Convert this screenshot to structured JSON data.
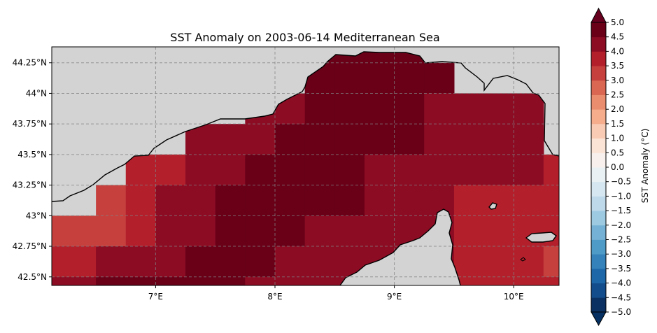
{
  "title": "SST Anomaly on 2003-06-14 Mediterranean Sea",
  "x_ticks": [
    {
      "lon": 7,
      "label": "7°E"
    },
    {
      "lon": 8,
      "label": "8°E"
    },
    {
      "lon": 9,
      "label": "9°E"
    },
    {
      "lon": 10,
      "label": "10°E"
    }
  ],
  "y_ticks": [
    {
      "lat": 44.25,
      "label": "44.25°N"
    },
    {
      "lat": 44.0,
      "label": "44°N"
    },
    {
      "lat": 43.75,
      "label": "43.75°N"
    },
    {
      "lat": 43.5,
      "label": "43.5°N"
    },
    {
      "lat": 43.25,
      "label": "43.25°N"
    },
    {
      "lat": 43.0,
      "label": "43°N"
    },
    {
      "lat": 42.75,
      "label": "42.75°N"
    },
    {
      "lat": 42.5,
      "label": "42.5°N"
    }
  ],
  "colorbar": {
    "label": "SST Anomaly (°C)",
    "ticks": [
      "−5.0",
      "−4.5",
      "−4.0",
      "−3.5",
      "−3.0",
      "−2.5",
      "−2.0",
      "−1.5",
      "−1.0",
      "−0.5",
      "0.0",
      "0.5",
      "1.0",
      "1.5",
      "2.0",
      "2.5",
      "3.0",
      "3.5",
      "4.0",
      "4.5",
      "5.0"
    ],
    "extend": "both",
    "colors": [
      "#0a3162",
      "#134d8b",
      "#1d67a9",
      "#3581b9",
      "#4f9bc7",
      "#74b1d4",
      "#9dcae1",
      "#bdd9ea",
      "#d7e7f1",
      "#eaf1f5",
      "#f8f0ec",
      "#fbe3d5",
      "#f9cbb4",
      "#f5ad8c",
      "#ea8c6e",
      "#d96752",
      "#c6413e",
      "#b3202c",
      "#8c0c24",
      "#690018"
    ],
    "extend_low_color": "#053061",
    "extend_high_color": "#67001f"
  },
  "colors": {
    "land": "#d3d3d3",
    "ocean_nodata": "#ffffff",
    "coastline": "#000000",
    "gridline": "#808080"
  },
  "chart_data": {
    "type": "heatmap",
    "title": "SST Anomaly on 2003-06-14 Mediterranean Sea",
    "xlabel": "",
    "ylabel": "",
    "lon_range": [
      6.13,
      10.38
    ],
    "lat_range": [
      42.43,
      44.38
    ],
    "grid_resolution_deg": 0.25,
    "grid_lines": true,
    "colorbar_label": "SST Anomaly (°C)",
    "colorbar_range": [
      -5.0,
      5.0
    ],
    "cells": [
      {
        "lon": 8.375,
        "lat": 44.375,
        "value": 4.8
      },
      {
        "lon": 8.625,
        "lat": 44.375,
        "value": 4.8
      },
      {
        "lon": 8.875,
        "lat": 44.375,
        "value": 4.8
      },
      {
        "lon": 9.125,
        "lat": 44.375,
        "value": 4.8
      },
      {
        "lon": 8.375,
        "lat": 44.125,
        "value": 4.8
      },
      {
        "lon": 8.625,
        "lat": 44.125,
        "value": 4.8
      },
      {
        "lon": 8.875,
        "lat": 44.125,
        "value": 4.8
      },
      {
        "lon": 9.125,
        "lat": 44.125,
        "value": 4.8
      },
      {
        "lon": 9.375,
        "lat": 44.125,
        "value": 4.8
      },
      {
        "lon": 7.875,
        "lat": 43.875,
        "value": 4.3
      },
      {
        "lon": 8.125,
        "lat": 43.875,
        "value": 4.3
      },
      {
        "lon": 8.375,
        "lat": 43.875,
        "value": 4.8
      },
      {
        "lon": 8.625,
        "lat": 43.875,
        "value": 4.8
      },
      {
        "lon": 8.875,
        "lat": 43.875,
        "value": 4.8
      },
      {
        "lon": 9.125,
        "lat": 43.875,
        "value": 4.8
      },
      {
        "lon": 9.375,
        "lat": 43.875,
        "value": 4.3
      },
      {
        "lon": 9.625,
        "lat": 43.875,
        "value": 4.3
      },
      {
        "lon": 9.875,
        "lat": 43.875,
        "value": 4.3
      },
      {
        "lon": 10.125,
        "lat": 43.875,
        "value": 4.3
      },
      {
        "lon": 7.375,
        "lat": 43.625,
        "value": 4.3
      },
      {
        "lon": 7.625,
        "lat": 43.625,
        "value": 4.3
      },
      {
        "lon": 7.875,
        "lat": 43.625,
        "value": 4.3
      },
      {
        "lon": 8.125,
        "lat": 43.625,
        "value": 4.8
      },
      {
        "lon": 8.375,
        "lat": 43.625,
        "value": 4.8
      },
      {
        "lon": 8.625,
        "lat": 43.625,
        "value": 4.8
      },
      {
        "lon": 8.875,
        "lat": 43.625,
        "value": 4.8
      },
      {
        "lon": 9.125,
        "lat": 43.625,
        "value": 4.8
      },
      {
        "lon": 9.375,
        "lat": 43.625,
        "value": 4.3
      },
      {
        "lon": 9.625,
        "lat": 43.625,
        "value": 4.3
      },
      {
        "lon": 9.875,
        "lat": 43.625,
        "value": 4.3
      },
      {
        "lon": 10.125,
        "lat": 43.625,
        "value": 4.3
      },
      {
        "lon": 6.875,
        "lat": 43.375,
        "value": 3.8
      },
      {
        "lon": 7.125,
        "lat": 43.375,
        "value": 3.8
      },
      {
        "lon": 7.375,
        "lat": 43.375,
        "value": 4.3
      },
      {
        "lon": 7.625,
        "lat": 43.375,
        "value": 4.3
      },
      {
        "lon": 7.875,
        "lat": 43.375,
        "value": 4.8
      },
      {
        "lon": 8.125,
        "lat": 43.375,
        "value": 4.8
      },
      {
        "lon": 8.375,
        "lat": 43.375,
        "value": 4.8
      },
      {
        "lon": 8.625,
        "lat": 43.375,
        "value": 4.8
      },
      {
        "lon": 8.875,
        "lat": 43.375,
        "value": 4.3
      },
      {
        "lon": 9.125,
        "lat": 43.375,
        "value": 4.3
      },
      {
        "lon": 9.375,
        "lat": 43.375,
        "value": 4.3
      },
      {
        "lon": 9.625,
        "lat": 43.375,
        "value": 4.3
      },
      {
        "lon": 9.875,
        "lat": 43.375,
        "value": 4.3
      },
      {
        "lon": 10.125,
        "lat": 43.375,
        "value": 4.3
      },
      {
        "lon": 10.375,
        "lat": 43.375,
        "value": 3.8
      },
      {
        "lon": 6.625,
        "lat": 43.125,
        "value": 3.3
      },
      {
        "lon": 6.875,
        "lat": 43.125,
        "value": 3.8
      },
      {
        "lon": 7.125,
        "lat": 43.125,
        "value": 4.3
      },
      {
        "lon": 7.375,
        "lat": 43.125,
        "value": 4.3
      },
      {
        "lon": 7.625,
        "lat": 43.125,
        "value": 4.8
      },
      {
        "lon": 7.875,
        "lat": 43.125,
        "value": 4.8
      },
      {
        "lon": 8.125,
        "lat": 43.125,
        "value": 4.8
      },
      {
        "lon": 8.375,
        "lat": 43.125,
        "value": 4.8
      },
      {
        "lon": 8.625,
        "lat": 43.125,
        "value": 4.8
      },
      {
        "lon": 8.875,
        "lat": 43.125,
        "value": 4.3
      },
      {
        "lon": 9.125,
        "lat": 43.125,
        "value": 4.3
      },
      {
        "lon": 9.375,
        "lat": 43.125,
        "value": 4.3
      },
      {
        "lon": 9.625,
        "lat": 43.125,
        "value": 3.8
      },
      {
        "lon": 9.875,
        "lat": 43.125,
        "value": 3.8
      },
      {
        "lon": 10.125,
        "lat": 43.125,
        "value": 3.8
      },
      {
        "lon": 10.375,
        "lat": 43.125,
        "value": 3.8
      },
      {
        "lon": 6.125,
        "lat": 42.875,
        "value": 3.3
      },
      {
        "lon": 6.375,
        "lat": 42.875,
        "value": 3.3
      },
      {
        "lon": 6.625,
        "lat": 42.875,
        "value": 3.3
      },
      {
        "lon": 6.875,
        "lat": 42.875,
        "value": 3.8
      },
      {
        "lon": 7.125,
        "lat": 42.875,
        "value": 4.3
      },
      {
        "lon": 7.375,
        "lat": 42.875,
        "value": 4.3
      },
      {
        "lon": 7.625,
        "lat": 42.875,
        "value": 4.8
      },
      {
        "lon": 7.875,
        "lat": 42.875,
        "value": 4.8
      },
      {
        "lon": 8.125,
        "lat": 42.875,
        "value": 4.8
      },
      {
        "lon": 8.375,
        "lat": 42.875,
        "value": 4.3
      },
      {
        "lon": 8.625,
        "lat": 42.875,
        "value": 4.3
      },
      {
        "lon": 8.875,
        "lat": 42.875,
        "value": 4.3
      },
      {
        "lon": 9.125,
        "lat": 42.875,
        "value": 4.3
      },
      {
        "lon": 9.375,
        "lat": 42.875,
        "value": 4.3
      },
      {
        "lon": 9.625,
        "lat": 42.875,
        "value": 3.8
      },
      {
        "lon": 9.875,
        "lat": 42.875,
        "value": 3.8
      },
      {
        "lon": 10.125,
        "lat": 42.875,
        "value": 3.8
      },
      {
        "lon": 10.375,
        "lat": 42.875,
        "value": 3.8
      },
      {
        "lon": 6.125,
        "lat": 42.625,
        "value": 3.8
      },
      {
        "lon": 6.375,
        "lat": 42.625,
        "value": 3.8
      },
      {
        "lon": 6.625,
        "lat": 42.625,
        "value": 4.3
      },
      {
        "lon": 6.875,
        "lat": 42.625,
        "value": 4.3
      },
      {
        "lon": 7.125,
        "lat": 42.625,
        "value": 4.3
      },
      {
        "lon": 7.375,
        "lat": 42.625,
        "value": 4.8
      },
      {
        "lon": 7.625,
        "lat": 42.625,
        "value": 4.8
      },
      {
        "lon": 7.875,
        "lat": 42.625,
        "value": 4.8
      },
      {
        "lon": 8.125,
        "lat": 42.625,
        "value": 4.3
      },
      {
        "lon": 8.375,
        "lat": 42.625,
        "value": 4.3
      },
      {
        "lon": 8.625,
        "lat": 42.625,
        "value": 4.3
      },
      {
        "lon": 8.875,
        "lat": 42.625,
        "value": 4.3
      },
      {
        "lon": 9.125,
        "lat": 42.625,
        "value": 4.3
      },
      {
        "lon": 9.375,
        "lat": 42.625,
        "value": 4.3
      },
      {
        "lon": 9.625,
        "lat": 42.625,
        "value": 3.8
      },
      {
        "lon": 9.875,
        "lat": 42.625,
        "value": 3.8
      },
      {
        "lon": 10.125,
        "lat": 42.625,
        "value": 3.8
      },
      {
        "lon": 10.375,
        "lat": 42.625,
        "value": 3.3
      },
      {
        "lon": 6.125,
        "lat": 42.375,
        "value": 4.3
      },
      {
        "lon": 6.375,
        "lat": 42.375,
        "value": 4.3
      },
      {
        "lon": 6.625,
        "lat": 42.375,
        "value": 4.8
      },
      {
        "lon": 6.875,
        "lat": 42.375,
        "value": 4.8
      },
      {
        "lon": 7.125,
        "lat": 42.375,
        "value": 4.8
      },
      {
        "lon": 7.375,
        "lat": 42.375,
        "value": 4.8
      },
      {
        "lon": 7.625,
        "lat": 42.375,
        "value": 4.8
      },
      {
        "lon": 7.875,
        "lat": 42.375,
        "value": 4.3
      },
      {
        "lon": 8.125,
        "lat": 42.375,
        "value": 4.3
      },
      {
        "lon": 8.375,
        "lat": 42.375,
        "value": 4.3
      },
      {
        "lon": 8.625,
        "lat": 42.375,
        "value": 4.3
      },
      {
        "lon": 8.875,
        "lat": 42.375,
        "value": 4.3
      },
      {
        "lon": 9.125,
        "lat": 42.375,
        "value": 4.3
      },
      {
        "lon": 9.375,
        "lat": 42.375,
        "value": 4.3
      },
      {
        "lon": 9.625,
        "lat": 42.375,
        "value": 3.8
      },
      {
        "lon": 9.875,
        "lat": 42.375,
        "value": 3.8
      },
      {
        "lon": 10.125,
        "lat": 42.375,
        "value": 3.8
      },
      {
        "lon": 10.375,
        "lat": 42.375,
        "value": 3.8
      }
    ]
  }
}
